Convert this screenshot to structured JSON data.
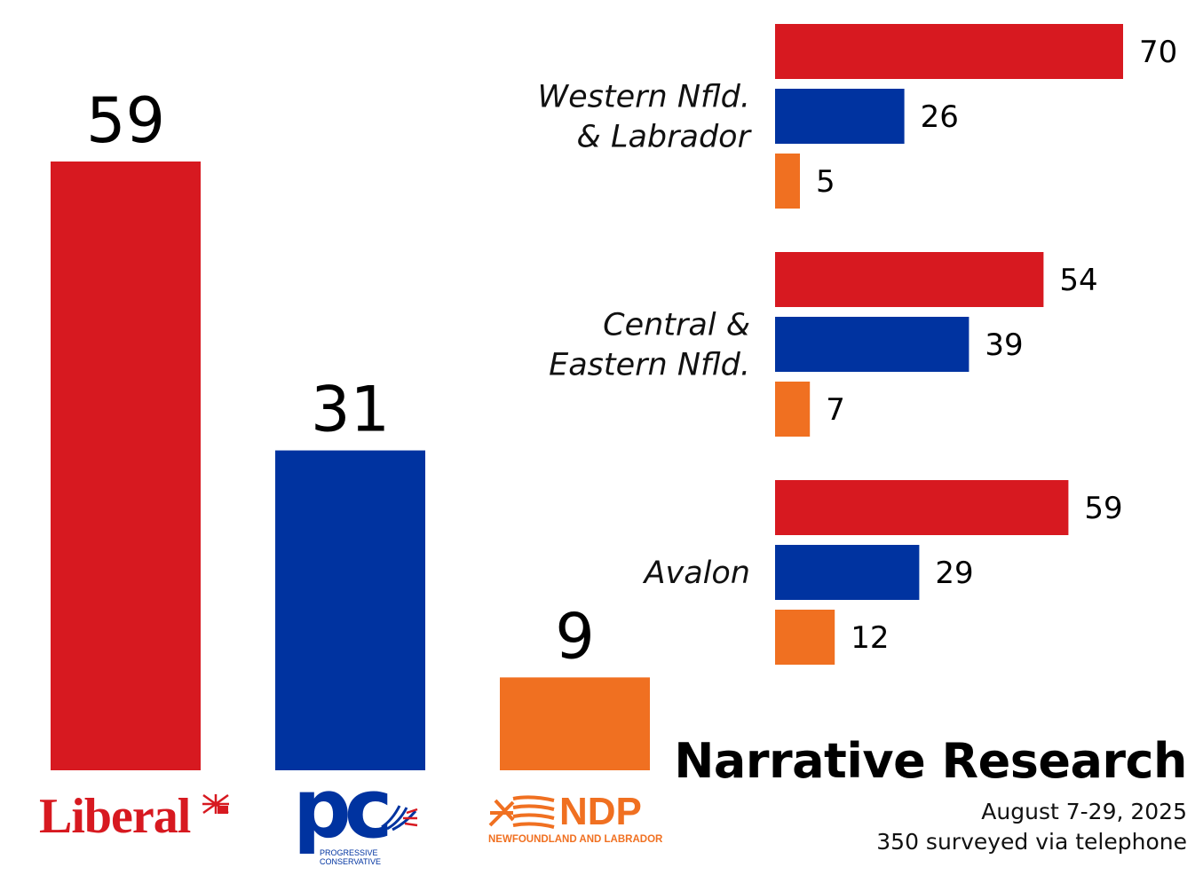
{
  "chart_data": [
    {
      "type": "bar",
      "title": "",
      "categories": [
        "Liberal",
        "PC",
        "NDP"
      ],
      "values": [
        59,
        31,
        9
      ],
      "colors": [
        "#d71920",
        "#0033a0",
        "#f07021"
      ],
      "ylim": [
        0,
        59
      ]
    },
    {
      "type": "bar",
      "orientation": "horizontal",
      "regions": [
        {
          "label_lines": [
            "Western Nfld.",
            "& Labrador"
          ],
          "values": [
            70,
            26,
            5
          ]
        },
        {
          "label_lines": [
            "Central &",
            "Eastern Nfld."
          ],
          "values": [
            54,
            39,
            7
          ]
        },
        {
          "label_lines": [
            "Avalon"
          ],
          "values": [
            59,
            29,
            12
          ]
        }
      ],
      "series": [
        "Liberal",
        "PC",
        "NDP"
      ],
      "colors": [
        "#d71920",
        "#0033a0",
        "#f07021"
      ],
      "xlim": [
        0,
        70
      ]
    }
  ],
  "logos": {
    "liberal": {
      "text": "Liberal"
    },
    "pc": {
      "letters": "pc",
      "line1": "PROGRESSIVE",
      "line2": "CONSERVATIVE"
    },
    "ndp": {
      "word": "NDP",
      "sub": "NEWFOUNDLAND AND LABRADOR"
    }
  },
  "footer": {
    "brand": "Narrative Research",
    "dates": "August 7-29, 2025",
    "sample": "350 surveyed via telephone"
  }
}
